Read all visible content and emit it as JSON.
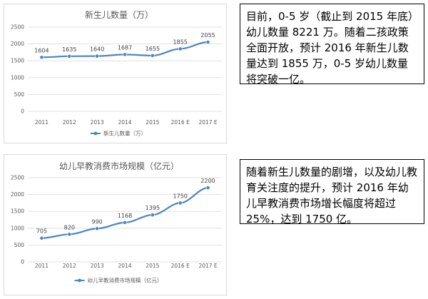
{
  "chart_data": [
    {
      "type": "line",
      "title": "新生儿数量（万）",
      "categories": [
        "2011",
        "2012",
        "2013",
        "2014",
        "2015",
        "2016 E",
        "2017 E"
      ],
      "series": [
        {
          "name": "新生儿数量（万）",
          "values": [
            1604,
            1635,
            1640,
            1687,
            1655,
            1855,
            2055
          ]
        }
      ],
      "ylim": [
        0,
        2500
      ],
      "yticks": [
        0,
        500,
        1000,
        1500,
        2000,
        2500
      ],
      "grid": true,
      "legend": "bottom",
      "color": "#4a86c5"
    },
    {
      "type": "line",
      "title": "幼儿早教消费市场规模（亿元）",
      "categories": [
        "2011",
        "2012",
        "2013",
        "2014",
        "2015",
        "2016 E",
        "2017 E"
      ],
      "series": [
        {
          "name": "幼儿早教消费市场规模（亿元）",
          "values": [
            705,
            820,
            990,
            1168,
            1395,
            1750,
            2200
          ]
        }
      ],
      "ylim": [
        0,
        2500
      ],
      "yticks": [
        0,
        500,
        1000,
        1500,
        2000,
        2500
      ],
      "grid": true,
      "legend": "bottom",
      "color": "#4a86c5"
    }
  ],
  "notes": [
    "目前，0-5 岁（截止到 2015 年底）幼儿数量 8221 万。随着二孩政策全面开放，预计 2016 年新生儿数量达到 1855 万，0-5 岁幼儿数量将突破一亿。",
    "随着新生儿数量的剧增，以及幼儿教育关注度的提升，预计 2016 年幼儿早教消费市场增长幅度将超过 25%，达到 1750 亿。"
  ]
}
